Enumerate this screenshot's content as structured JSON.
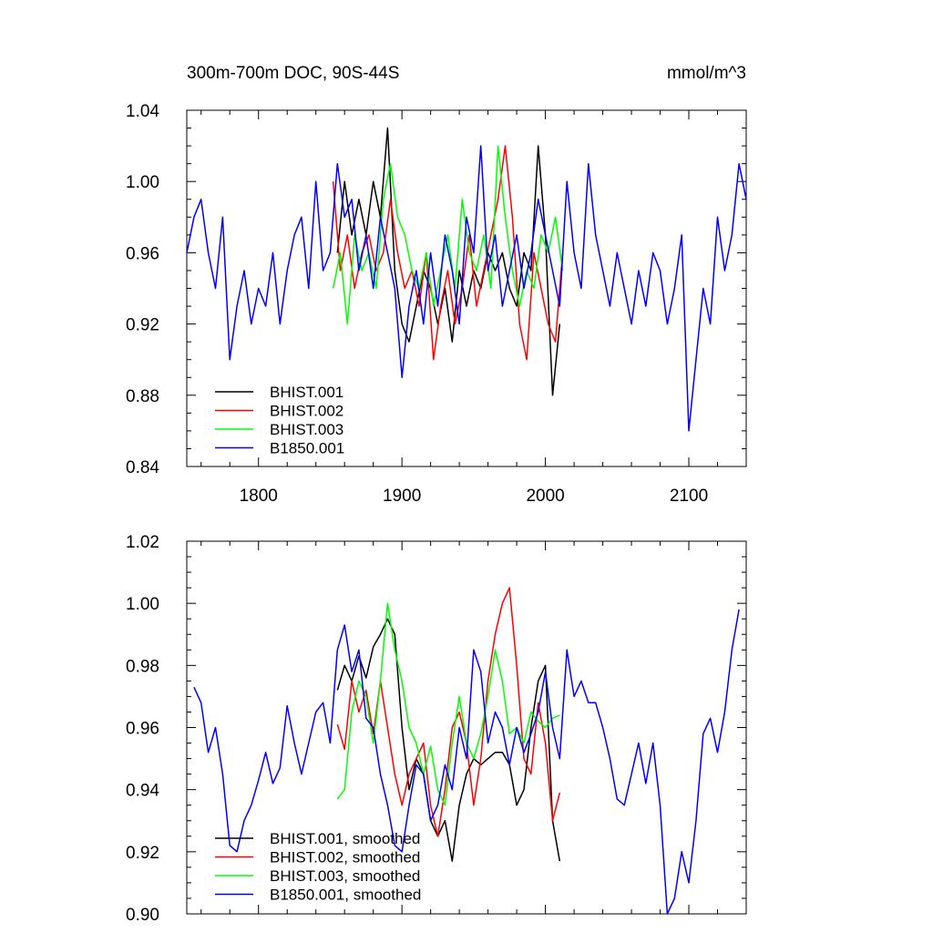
{
  "chart_data": [
    {
      "type": "line",
      "title": "300m-700m DOC, 90S-44S",
      "units": "mmol/m^3",
      "xlim": [
        1750,
        2140
      ],
      "ylim": [
        0.84,
        1.04
      ],
      "xticks": [
        1800,
        1900,
        2000,
        2100
      ],
      "yticks": [
        0.84,
        0.88,
        0.92,
        0.96,
        1.0,
        1.04
      ],
      "xtick_labels": [
        "1800",
        "1900",
        "2000",
        "2100"
      ],
      "ytick_labels": [
        "0.84",
        "0.88",
        "0.92",
        "0.96",
        "1.00",
        "1.04"
      ],
      "legend_position": "bottom-left",
      "series": [
        {
          "name": "BHIST.001",
          "color": "#000000",
          "x": [
            1855,
            1860,
            1865,
            1870,
            1875,
            1880,
            1885,
            1890,
            1895,
            1900,
            1905,
            1910,
            1915,
            1920,
            1925,
            1930,
            1935,
            1940,
            1945,
            1950,
            1955,
            1960,
            1965,
            1970,
            1975,
            1980,
            1985,
            1990,
            1995,
            2000,
            2005,
            2010
          ],
          "y": [
            0.96,
            1.0,
            0.97,
            0.99,
            0.97,
            1.0,
            0.98,
            1.03,
            0.95,
            0.92,
            0.91,
            0.93,
            0.95,
            0.94,
            0.92,
            0.94,
            0.91,
            0.95,
            0.93,
            0.95,
            0.94,
            0.96,
            0.95,
            0.96,
            0.94,
            0.93,
            0.96,
            0.95,
            1.02,
            0.97,
            0.88,
            0.92
          ]
        },
        {
          "name": "BHIST.002",
          "color": "#ff0000",
          "x": [
            1852,
            1857,
            1862,
            1867,
            1872,
            1877,
            1882,
            1887,
            1892,
            1897,
            1902,
            1907,
            1912,
            1917,
            1922,
            1927,
            1932,
            1937,
            1942,
            1947,
            1952,
            1957,
            1962,
            1967,
            1972,
            1977,
            1982,
            1987,
            1992,
            1997,
            2002,
            2007,
            2012
          ],
          "y": [
            1.0,
            0.95,
            0.97,
            0.94,
            0.96,
            0.97,
            0.95,
            0.96,
            0.99,
            0.96,
            0.94,
            0.95,
            0.93,
            0.96,
            0.9,
            0.93,
            0.95,
            0.92,
            0.94,
            0.97,
            0.93,
            0.95,
            0.97,
            0.99,
            1.02,
            0.98,
            0.92,
            0.9,
            0.96,
            0.94,
            0.92,
            0.91,
            0.96
          ]
        },
        {
          "name": "BHIST.003",
          "color": "#00ff00",
          "x": [
            1852,
            1857,
            1862,
            1867,
            1872,
            1877,
            1882,
            1887,
            1892,
            1897,
            1902,
            1907,
            1912,
            1917,
            1922,
            1927,
            1932,
            1937,
            1942,
            1947,
            1952,
            1957,
            1962,
            1967,
            1972,
            1977,
            1982,
            1987,
            1992,
            1997,
            2002,
            2007,
            2012
          ],
          "y": [
            0.94,
            0.96,
            0.92,
            0.97,
            0.95,
            0.96,
            0.94,
            0.99,
            1.01,
            0.98,
            0.97,
            0.95,
            0.94,
            0.96,
            0.93,
            0.95,
            0.97,
            0.94,
            0.99,
            0.96,
            0.95,
            0.97,
            0.94,
            1.02,
            0.98,
            0.95,
            0.93,
            0.95,
            0.94,
            0.97,
            0.96,
            0.98,
            0.95
          ]
        },
        {
          "name": "B1850.001",
          "color": "#0000ff",
          "x": [
            1750,
            1755,
            1760,
            1765,
            1770,
            1775,
            1780,
            1785,
            1790,
            1795,
            1800,
            1805,
            1810,
            1815,
            1820,
            1825,
            1830,
            1835,
            1840,
            1845,
            1850,
            1855,
            1860,
            1865,
            1870,
            1875,
            1880,
            1885,
            1890,
            1895,
            1900,
            1905,
            1910,
            1915,
            1920,
            1925,
            1930,
            1935,
            1940,
            1945,
            1950,
            1955,
            1960,
            1965,
            1970,
            1975,
            1980,
            1985,
            1990,
            1995,
            2000,
            2005,
            2010,
            2015,
            2020,
            2025,
            2030,
            2035,
            2040,
            2045,
            2050,
            2055,
            2060,
            2065,
            2070,
            2075,
            2080,
            2085,
            2090,
            2095,
            2100,
            2105,
            2110,
            2115,
            2120,
            2125,
            2130,
            2135,
            2140
          ],
          "y": [
            0.96,
            0.98,
            0.99,
            0.96,
            0.94,
            0.98,
            0.9,
            0.93,
            0.95,
            0.92,
            0.94,
            0.93,
            0.96,
            0.92,
            0.95,
            0.97,
            0.98,
            0.94,
            1.0,
            0.95,
            0.96,
            1.01,
            0.98,
            0.99,
            0.95,
            0.97,
            0.94,
            0.98,
            0.96,
            0.94,
            0.89,
            0.93,
            0.95,
            0.92,
            0.96,
            0.93,
            0.97,
            0.95,
            0.92,
            0.98,
            0.96,
            1.02,
            0.95,
            0.97,
            0.93,
            0.95,
            0.97,
            0.94,
            0.96,
            0.99,
            0.97,
            0.95,
            0.93,
            1.0,
            0.96,
            0.94,
            1.01,
            0.97,
            0.95,
            0.93,
            0.96,
            0.94,
            0.92,
            0.95,
            0.93,
            0.96,
            0.95,
            0.92,
            0.94,
            0.97,
            0.86,
            0.9,
            0.94,
            0.92,
            0.98,
            0.95,
            0.97,
            1.01,
            0.99
          ]
        }
      ]
    },
    {
      "type": "line",
      "xlim": [
        1750,
        2140
      ],
      "ylim": [
        0.9,
        1.02
      ],
      "xticks": [
        1800,
        1900,
        2000,
        2100
      ],
      "yticks": [
        0.9,
        0.92,
        0.94,
        0.96,
        0.98,
        1.0,
        1.02
      ],
      "ytick_labels": [
        "0.90",
        "0.92",
        "0.94",
        "0.96",
        "0.98",
        "1.00",
        "1.02"
      ],
      "legend_position": "bottom-left",
      "series": [
        {
          "name": "BHIST.001, smoothed",
          "color": "#000000",
          "x": [
            1855,
            1860,
            1865,
            1870,
            1875,
            1880,
            1885,
            1890,
            1895,
            1900,
            1905,
            1910,
            1915,
            1920,
            1925,
            1930,
            1935,
            1940,
            1945,
            1950,
            1955,
            1960,
            1965,
            1970,
            1975,
            1980,
            1985,
            1990,
            1995,
            2000,
            2005,
            2010
          ],
          "y": [
            0.972,
            0.98,
            0.975,
            0.983,
            0.976,
            0.986,
            0.99,
            0.995,
            0.99,
            0.96,
            0.94,
            0.95,
            0.945,
            0.93,
            0.925,
            0.93,
            0.917,
            0.935,
            0.945,
            0.95,
            0.948,
            0.95,
            0.952,
            0.952,
            0.948,
            0.935,
            0.94,
            0.96,
            0.975,
            0.98,
            0.93,
            0.917
          ]
        },
        {
          "name": "BHIST.002, smoothed",
          "color": "#ff0000",
          "x": [
            1855,
            1860,
            1865,
            1870,
            1875,
            1880,
            1885,
            1890,
            1895,
            1900,
            1905,
            1910,
            1915,
            1920,
            1925,
            1930,
            1935,
            1940,
            1945,
            1950,
            1955,
            1960,
            1965,
            1970,
            1975,
            1980,
            1985,
            1990,
            1995,
            2000,
            2005,
            2010
          ],
          "y": [
            0.961,
            0.953,
            0.975,
            0.965,
            0.972,
            0.958,
            0.975,
            0.96,
            0.945,
            0.935,
            0.945,
            0.95,
            0.955,
            0.935,
            0.925,
            0.94,
            0.96,
            0.965,
            0.955,
            0.935,
            0.95,
            0.975,
            0.99,
            1.0,
            1.005,
            0.98,
            0.95,
            0.945,
            0.968,
            0.955,
            0.93,
            0.939
          ]
        },
        {
          "name": "BHIST.003, smoothed",
          "color": "#00ff00",
          "x": [
            1855,
            1860,
            1865,
            1870,
            1875,
            1880,
            1885,
            1890,
            1895,
            1900,
            1905,
            1910,
            1915,
            1920,
            1925,
            1930,
            1935,
            1940,
            1945,
            1950,
            1955,
            1960,
            1965,
            1970,
            1975,
            1980,
            1985,
            1990,
            1995,
            2000,
            2005,
            2010
          ],
          "y": [
            0.937,
            0.94,
            0.965,
            0.975,
            0.97,
            0.955,
            0.975,
            1.0,
            0.985,
            0.975,
            0.96,
            0.955,
            0.945,
            0.954,
            0.94,
            0.935,
            0.955,
            0.97,
            0.955,
            0.95,
            0.958,
            0.97,
            0.985,
            0.975,
            0.958,
            0.96,
            0.955,
            0.965,
            0.962,
            0.96,
            0.963,
            0.964
          ]
        },
        {
          "name": "B1850.001, smoothed",
          "color": "#0000ff",
          "x": [
            1755,
            1760,
            1765,
            1770,
            1775,
            1780,
            1785,
            1790,
            1795,
            1800,
            1805,
            1810,
            1815,
            1820,
            1825,
            1830,
            1835,
            1840,
            1845,
            1850,
            1855,
            1860,
            1865,
            1870,
            1875,
            1880,
            1885,
            1890,
            1895,
            1900,
            1905,
            1910,
            1915,
            1920,
            1925,
            1930,
            1935,
            1940,
            1945,
            1950,
            1955,
            1960,
            1965,
            1970,
            1975,
            1980,
            1985,
            1990,
            1995,
            2000,
            2005,
            2010,
            2015,
            2020,
            2025,
            2030,
            2035,
            2040,
            2045,
            2050,
            2055,
            2060,
            2065,
            2070,
            2075,
            2080,
            2085,
            2090,
            2095,
            2100,
            2105,
            2110,
            2115,
            2120,
            2125,
            2130,
            2135
          ],
          "y": [
            0.973,
            0.968,
            0.952,
            0.96,
            0.945,
            0.922,
            0.92,
            0.93,
            0.935,
            0.943,
            0.952,
            0.942,
            0.947,
            0.967,
            0.955,
            0.945,
            0.955,
            0.965,
            0.968,
            0.955,
            0.985,
            0.993,
            0.978,
            0.985,
            0.963,
            0.96,
            0.945,
            0.935,
            0.922,
            0.92,
            0.935,
            0.948,
            0.945,
            0.93,
            0.935,
            0.948,
            0.94,
            0.96,
            0.95,
            0.985,
            0.978,
            0.955,
            0.965,
            0.96,
            0.948,
            0.96,
            0.952,
            0.958,
            0.965,
            0.978,
            0.96,
            0.95,
            0.985,
            0.97,
            0.975,
            0.968,
            0.968,
            0.96,
            0.95,
            0.937,
            0.935,
            0.945,
            0.955,
            0.942,
            0.955,
            0.935,
            0.9,
            0.905,
            0.92,
            0.91,
            0.93,
            0.958,
            0.963,
            0.952,
            0.965,
            0.985,
            0.998
          ]
        }
      ]
    }
  ]
}
